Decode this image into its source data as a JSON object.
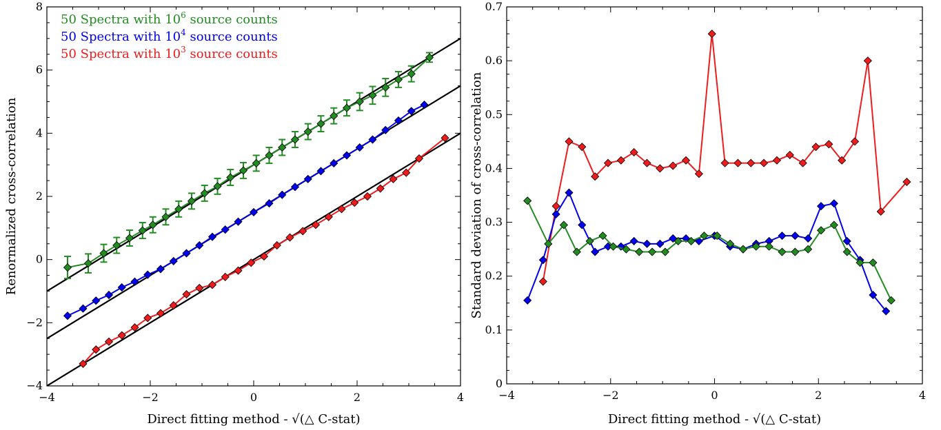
{
  "chart_data": [
    {
      "type": "line",
      "xlabel": "Direct fitting method - √(△ C-stat)",
      "ylabel": "Renormalized cross-correlation",
      "xlim": [
        -4,
        4
      ],
      "ylim": [
        -4,
        8
      ],
      "xticks": [
        -4,
        -2,
        0,
        2,
        4
      ],
      "yticks": [
        -4,
        -2,
        0,
        2,
        4,
        6,
        8
      ],
      "xtick_labels": [
        "−4",
        "−2",
        "0",
        "2",
        "4"
      ],
      "ytick_labels": [
        "−4",
        "−2",
        "0",
        "2",
        "4",
        "6",
        "8"
      ],
      "legend_position": "top-left",
      "legend": [
        {
          "pre": "50 Spectra with 10",
          "sup": "6",
          "post": " source counts",
          "color": "#228b22"
        },
        {
          "pre": "50 Spectra with 10",
          "sup": "4",
          "post": " source counts",
          "color": "#0000ee"
        },
        {
          "pre": "50 Spectra with 10",
          "sup": "3",
          "post": " source counts",
          "color": "#ee1c1c"
        }
      ],
      "reference_lines": [
        {
          "intercept": 3.0,
          "slope": 1.0,
          "color": "#000000"
        },
        {
          "intercept": 1.5,
          "slope": 1.0,
          "color": "#000000"
        },
        {
          "intercept": 0.0,
          "slope": 1.0,
          "color": "#000000"
        }
      ],
      "series": [
        {
          "color": "#228b22",
          "x": [
            -3.6,
            -3.2,
            -2.9,
            -2.65,
            -2.4,
            -2.15,
            -1.95,
            -1.7,
            -1.45,
            -1.2,
            -0.95,
            -0.7,
            -0.45,
            -0.2,
            0.05,
            0.3,
            0.55,
            0.8,
            1.05,
            1.3,
            1.55,
            1.8,
            2.05,
            2.3,
            2.55,
            2.8,
            3.05,
            3.4
          ],
          "y": [
            -0.25,
            -0.12,
            0.2,
            0.45,
            0.68,
            0.92,
            1.1,
            1.35,
            1.6,
            1.85,
            2.1,
            2.32,
            2.6,
            2.82,
            3.05,
            3.3,
            3.55,
            3.8,
            4.05,
            4.3,
            4.55,
            4.8,
            5.0,
            5.2,
            5.45,
            5.7,
            5.88,
            6.4
          ],
          "err": [
            0.35,
            0.3,
            0.28,
            0.25,
            0.25,
            0.25,
            0.25,
            0.25,
            0.25,
            0.25,
            0.25,
            0.25,
            0.25,
            0.25,
            0.25,
            0.25,
            0.25,
            0.25,
            0.25,
            0.25,
            0.25,
            0.25,
            0.28,
            0.28,
            0.28,
            0.25,
            0.25,
            0.15
          ]
        },
        {
          "color": "#0000ee",
          "x": [
            -3.6,
            -3.3,
            -3.05,
            -2.8,
            -2.55,
            -2.3,
            -2.05,
            -1.8,
            -1.55,
            -1.3,
            -1.05,
            -0.8,
            -0.55,
            -0.3,
            0.0,
            0.3,
            0.55,
            0.8,
            1.05,
            1.3,
            1.55,
            1.8,
            2.05,
            2.3,
            2.55,
            2.8,
            3.05,
            3.3
          ],
          "y": [
            -1.78,
            -1.55,
            -1.3,
            -1.12,
            -0.88,
            -0.7,
            -0.48,
            -0.3,
            -0.05,
            0.2,
            0.45,
            0.72,
            0.95,
            1.2,
            1.5,
            1.78,
            2.05,
            2.3,
            2.55,
            2.8,
            3.05,
            3.3,
            3.55,
            3.8,
            4.1,
            4.4,
            4.7,
            4.9
          ]
        },
        {
          "color": "#ee1c1c",
          "x": [
            -3.3,
            -3.05,
            -2.8,
            -2.55,
            -2.3,
            -2.05,
            -1.8,
            -1.55,
            -1.3,
            -1.05,
            -0.8,
            -0.55,
            -0.3,
            -0.05,
            0.2,
            0.45,
            0.7,
            0.95,
            1.2,
            1.45,
            1.7,
            1.95,
            2.2,
            2.45,
            2.7,
            2.95,
            3.2,
            3.7
          ],
          "y": [
            -3.3,
            -2.85,
            -2.6,
            -2.4,
            -2.15,
            -1.85,
            -1.7,
            -1.45,
            -1.1,
            -0.9,
            -0.8,
            -0.55,
            -0.35,
            -0.1,
            0.1,
            0.45,
            0.7,
            0.9,
            1.1,
            1.35,
            1.6,
            1.8,
            2.0,
            2.25,
            2.55,
            2.75,
            3.2,
            3.85
          ]
        }
      ]
    },
    {
      "type": "line",
      "xlabel": "Direct fitting method - √(△ C-stat)",
      "ylabel": "Standard deviation of cross-correlation",
      "xlim": [
        -4,
        4
      ],
      "ylim": [
        0,
        0.7
      ],
      "xticks": [
        -4,
        -2,
        0,
        2,
        4
      ],
      "yticks": [
        0,
        0.1,
        0.2,
        0.3,
        0.4,
        0.5,
        0.6,
        0.7
      ],
      "xtick_labels": [
        "−4",
        "−2",
        "0",
        "2",
        "4"
      ],
      "ytick_labels": [
        "0",
        "0.1",
        "0.2",
        "0.3",
        "0.4",
        "0.5",
        "0.6",
        "0.7"
      ],
      "series": [
        {
          "color": "#ee1c1c",
          "x": [
            -3.3,
            -3.05,
            -2.8,
            -2.55,
            -2.3,
            -2.05,
            -1.8,
            -1.55,
            -1.3,
            -1.05,
            -0.8,
            -0.55,
            -0.3,
            -0.05,
            0.2,
            0.45,
            0.7,
            0.95,
            1.2,
            1.45,
            1.7,
            1.95,
            2.2,
            2.45,
            2.7,
            2.95,
            3.2,
            3.7
          ],
          "y": [
            0.19,
            0.33,
            0.45,
            0.44,
            0.385,
            0.41,
            0.415,
            0.43,
            0.41,
            0.4,
            0.405,
            0.415,
            0.39,
            0.65,
            0.41,
            0.41,
            0.41,
            0.41,
            0.415,
            0.425,
            0.41,
            0.44,
            0.445,
            0.415,
            0.45,
            0.6,
            0.32,
            0.375
          ]
        },
        {
          "color": "#0000ee",
          "x": [
            -3.6,
            -3.3,
            -3.05,
            -2.8,
            -2.55,
            -2.3,
            -2.05,
            -1.8,
            -1.55,
            -1.3,
            -1.05,
            -0.8,
            -0.55,
            -0.3,
            0.0,
            0.3,
            0.55,
            0.8,
            1.05,
            1.3,
            1.55,
            1.8,
            2.05,
            2.3,
            2.55,
            2.8,
            3.05,
            3.3
          ],
          "y": [
            0.155,
            0.23,
            0.315,
            0.355,
            0.295,
            0.245,
            0.255,
            0.255,
            0.265,
            0.26,
            0.26,
            0.27,
            0.27,
            0.265,
            0.275,
            0.255,
            0.25,
            0.26,
            0.265,
            0.275,
            0.275,
            0.27,
            0.33,
            0.335,
            0.265,
            0.23,
            0.165,
            0.135
          ]
        },
        {
          "color": "#228b22",
          "x": [
            -3.6,
            -3.2,
            -2.9,
            -2.65,
            -2.4,
            -2.15,
            -1.95,
            -1.7,
            -1.45,
            -1.2,
            -0.95,
            -0.7,
            -0.45,
            -0.2,
            0.05,
            0.3,
            0.55,
            0.8,
            1.05,
            1.3,
            1.55,
            1.8,
            2.05,
            2.3,
            2.55,
            2.8,
            3.05,
            3.4
          ],
          "y": [
            0.34,
            0.26,
            0.295,
            0.245,
            0.265,
            0.275,
            0.255,
            0.25,
            0.245,
            0.245,
            0.245,
            0.265,
            0.265,
            0.275,
            0.275,
            0.26,
            0.25,
            0.255,
            0.255,
            0.245,
            0.245,
            0.25,
            0.285,
            0.295,
            0.245,
            0.225,
            0.225,
            0.155
          ]
        }
      ]
    }
  ]
}
